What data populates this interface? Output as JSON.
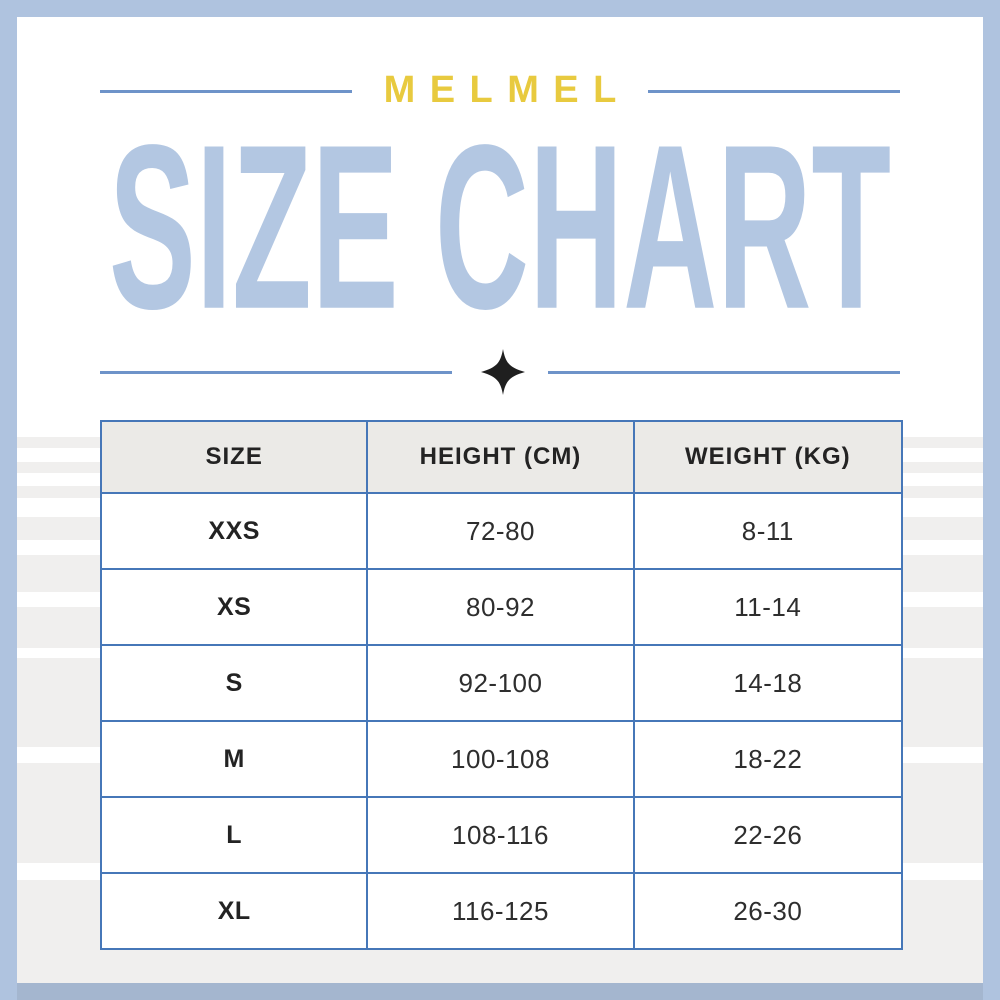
{
  "brand": "MELMEL",
  "title": "SIZE CHART",
  "icons": {
    "divider_star": "four-pointed-sparkle"
  },
  "colors": {
    "frame": "#AFC3DF",
    "frame_bottom": "#A4B6CF",
    "brand_yellow": "#E8CA3F",
    "title_blue": "#B3C7E2",
    "line_blue": "#6E93C9",
    "table_border_blue": "#4677B8",
    "header_bg": "#EBEAE7",
    "stripe_gray": "#F0EFEE",
    "text_dark": "#232323",
    "star_black": "#1F1F1F"
  },
  "table": {
    "headers": [
      "SIZE",
      "HEIGHT (CM)",
      "WEIGHT (KG)"
    ],
    "rows": [
      [
        "XXS",
        "72-80",
        "8-11"
      ],
      [
        "XS",
        "80-92",
        "11-14"
      ],
      [
        "S",
        "92-100",
        "14-18"
      ],
      [
        "M",
        "100-108",
        "18-22"
      ],
      [
        "L",
        "108-116",
        "22-26"
      ],
      [
        "XL",
        "116-125",
        "26-30"
      ]
    ]
  },
  "chart_data": {
    "type": "table",
    "title": "SIZE CHART",
    "subtitle": "MELMEL",
    "columns": [
      "SIZE",
      "HEIGHT (CM)",
      "WEIGHT (KG)"
    ],
    "rows": [
      {
        "size": "XXS",
        "height_cm": "72-80",
        "weight_kg": "8-11"
      },
      {
        "size": "XS",
        "height_cm": "80-92",
        "weight_kg": "11-14"
      },
      {
        "size": "S",
        "height_cm": "92-100",
        "weight_kg": "14-18"
      },
      {
        "size": "M",
        "height_cm": "100-108",
        "weight_kg": "18-22"
      },
      {
        "size": "L",
        "height_cm": "108-116",
        "weight_kg": "22-26"
      },
      {
        "size": "XL",
        "height_cm": "116-125",
        "weight_kg": "26-30"
      }
    ]
  }
}
